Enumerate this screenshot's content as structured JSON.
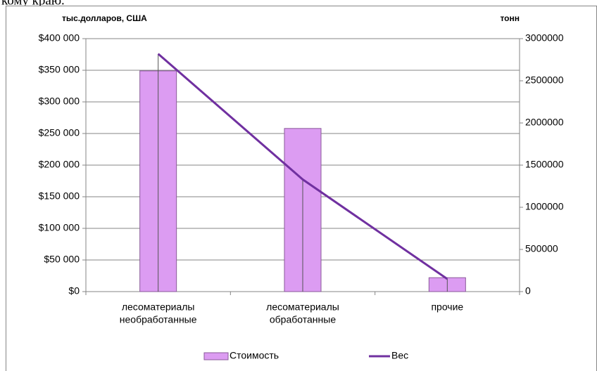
{
  "page_text": "кому краю.",
  "chart_data": {
    "type": "bar_line",
    "y_axis_label": "тыс.долларов, США",
    "y2_axis_label": "тонн",
    "categories": [
      [
        "лесоматериалы",
        "необработанные"
      ],
      [
        "лесоматериалы",
        "обработанные"
      ],
      [
        "прочие"
      ]
    ],
    "series": [
      {
        "name": "Стоимость",
        "type": "bar",
        "color": "#dc9cf2",
        "values": [
          349000,
          258000,
          22000
        ]
      },
      {
        "name": "Вес",
        "type": "line",
        "axis": "y2",
        "color": "#7030a0",
        "values": [
          2820000,
          1330000,
          150000
        ]
      }
    ],
    "ylim": [
      0,
      400000
    ],
    "yticks": [
      {
        "value": 0,
        "label": "$0"
      },
      {
        "value": 50000,
        "label": "$50 000"
      },
      {
        "value": 100000,
        "label": "$100 000"
      },
      {
        "value": 150000,
        "label": "$150 000"
      },
      {
        "value": 200000,
        "label": "$200 000"
      },
      {
        "value": 250000,
        "label": "$250 000"
      },
      {
        "value": 300000,
        "label": "$300 000"
      },
      {
        "value": 350000,
        "label": "$350 000"
      },
      {
        "value": 400000,
        "label": "$400 000"
      }
    ],
    "y2lim": [
      0,
      3000000
    ],
    "y2ticks": [
      0,
      500000,
      1000000,
      1500000,
      2000000,
      2500000,
      3000000
    ],
    "grid": true,
    "legend": "bottom"
  }
}
